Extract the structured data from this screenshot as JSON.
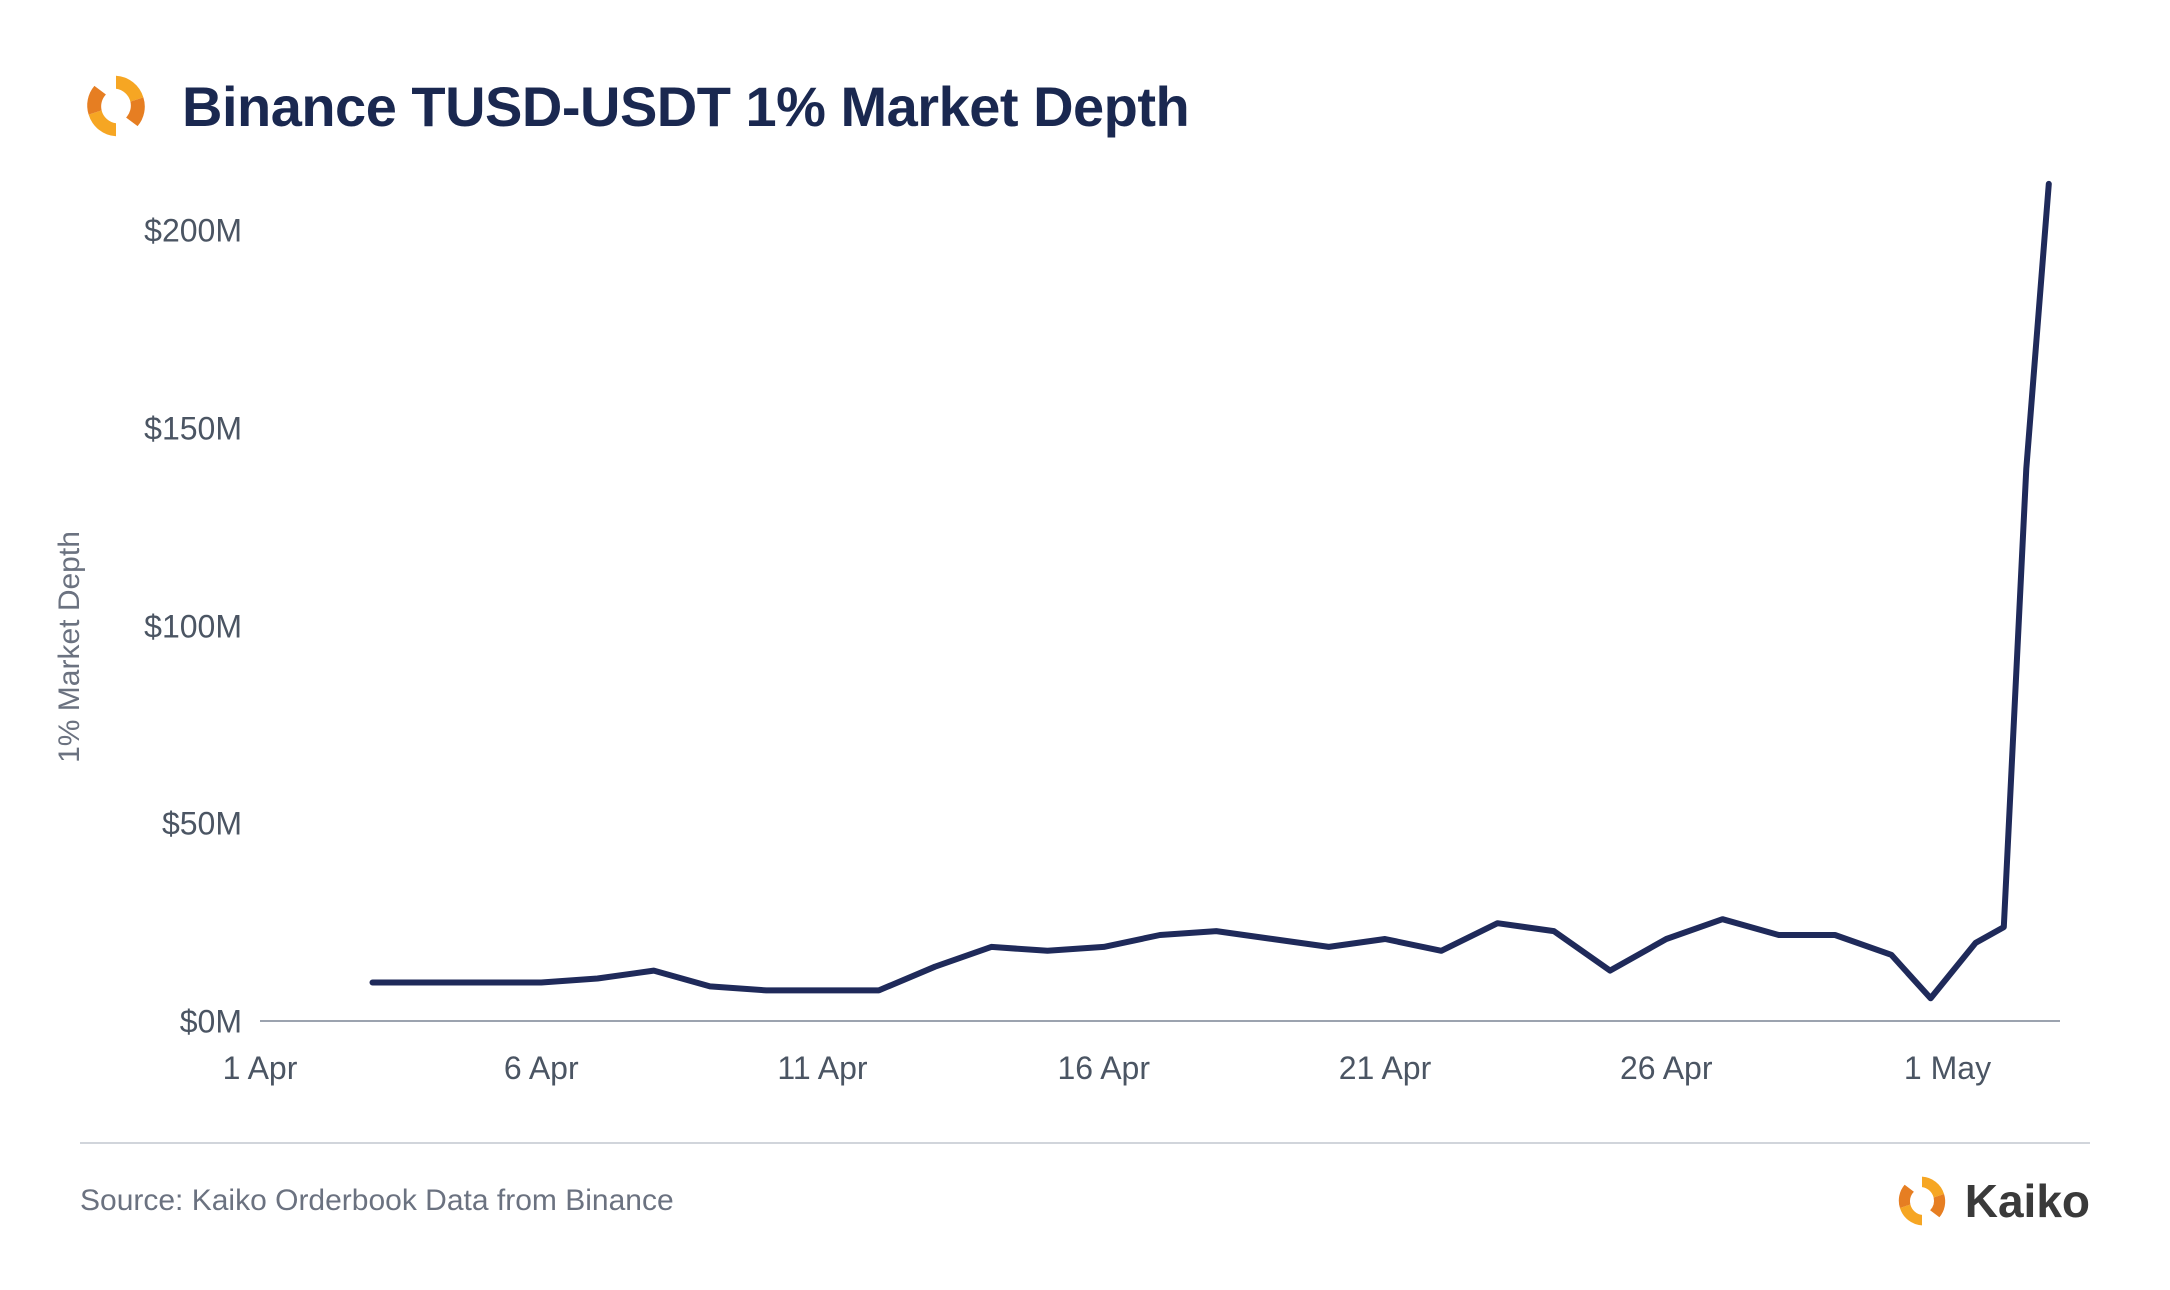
{
  "header": {
    "title": "Binance TUSD-USDT 1% Market Depth"
  },
  "chart": {
    "type": "line",
    "ylabel": "1% Market Depth",
    "line_color": "#1f2a5a",
    "line_width": 6,
    "axis_color": "#9ca3af",
    "tick_color": "#4b5563",
    "tick_fontsize": 32,
    "label_fontsize": 30,
    "background_color": "#ffffff",
    "ylim": [
      0,
      215
    ],
    "yticks": [
      {
        "value": 0,
        "label": "$0M"
      },
      {
        "value": 50,
        "label": "$50M"
      },
      {
        "value": 100,
        "label": "$100M"
      },
      {
        "value": 150,
        "label": "$150M"
      },
      {
        "value": 200,
        "label": "$200M"
      }
    ],
    "xlim": [
      0,
      32
    ],
    "xticks": [
      {
        "value": 0,
        "label": "1 Apr"
      },
      {
        "value": 5,
        "label": "6 Apr"
      },
      {
        "value": 10,
        "label": "11 Apr"
      },
      {
        "value": 15,
        "label": "16 Apr"
      },
      {
        "value": 20,
        "label": "21 Apr"
      },
      {
        "value": 25,
        "label": "26 Apr"
      },
      {
        "value": 30,
        "label": "1 May"
      }
    ],
    "series": [
      {
        "x": 2,
        "y": 10
      },
      {
        "x": 3,
        "y": 10
      },
      {
        "x": 4,
        "y": 10
      },
      {
        "x": 5,
        "y": 10
      },
      {
        "x": 6,
        "y": 11
      },
      {
        "x": 7,
        "y": 13
      },
      {
        "x": 8,
        "y": 9
      },
      {
        "x": 9,
        "y": 8
      },
      {
        "x": 10,
        "y": 8
      },
      {
        "x": 11,
        "y": 8
      },
      {
        "x": 12,
        "y": 14
      },
      {
        "x": 13,
        "y": 19
      },
      {
        "x": 14,
        "y": 18
      },
      {
        "x": 15,
        "y": 19
      },
      {
        "x": 16,
        "y": 22
      },
      {
        "x": 17,
        "y": 23
      },
      {
        "x": 18,
        "y": 21
      },
      {
        "x": 19,
        "y": 19
      },
      {
        "x": 20,
        "y": 21
      },
      {
        "x": 21,
        "y": 18
      },
      {
        "x": 22,
        "y": 25
      },
      {
        "x": 23,
        "y": 23
      },
      {
        "x": 24,
        "y": 13
      },
      {
        "x": 25,
        "y": 21
      },
      {
        "x": 26,
        "y": 26
      },
      {
        "x": 27,
        "y": 22
      },
      {
        "x": 28,
        "y": 22
      },
      {
        "x": 29,
        "y": 17
      },
      {
        "x": 29.7,
        "y": 6
      },
      {
        "x": 30.5,
        "y": 20
      },
      {
        "x": 31,
        "y": 24
      },
      {
        "x": 31.4,
        "y": 140
      },
      {
        "x": 31.8,
        "y": 212
      }
    ]
  },
  "footer": {
    "source": "Source: Kaiko Orderbook Data from Binance",
    "brand": "Kaiko"
  },
  "colors": {
    "title": "#1a2850",
    "logo_orange": "#f6a623",
    "logo_dark_orange": "#e67e22",
    "divider": "#d1d5db",
    "muted": "#6b7280"
  }
}
